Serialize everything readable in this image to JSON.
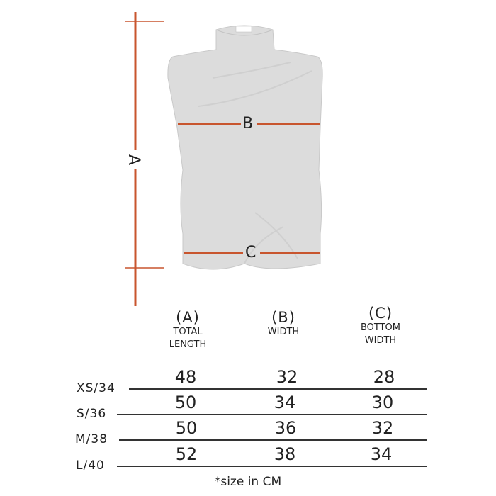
{
  "diagram": {
    "accent_color": "#c8552e",
    "garment_color": "#dcdcdc",
    "labels": {
      "a": "A",
      "b": "B",
      "c": "C"
    }
  },
  "table": {
    "columns": [
      {
        "letter": "(A)",
        "name_lines": [
          "TOTAL",
          "LENGTH"
        ]
      },
      {
        "letter": "(B)",
        "name_lines": [
          "WIDTH"
        ]
      },
      {
        "letter": "(C)",
        "name_lines": [
          "BOTTOM",
          "WIDTH"
        ]
      }
    ],
    "rows": [
      {
        "size": "XS/34",
        "values": [
          "48",
          "32",
          "28"
        ]
      },
      {
        "size": "S/36",
        "values": [
          "50",
          "34",
          "30"
        ]
      },
      {
        "size": "M/38",
        "values": [
          "50",
          "36",
          "32"
        ]
      },
      {
        "size": "L/40",
        "values": [
          "52",
          "38",
          "34"
        ]
      }
    ],
    "footnote": "*size in CM"
  }
}
